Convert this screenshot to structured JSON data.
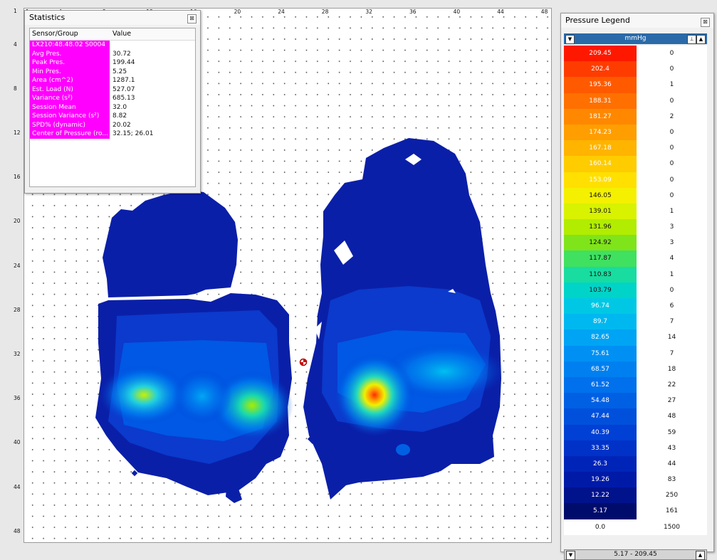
{
  "plot": {
    "x_ticks": [
      "1",
      "4",
      "8",
      "12",
      "16",
      "20",
      "24",
      "28",
      "32",
      "36",
      "40",
      "44",
      "48"
    ],
    "y_ticks": [
      "1",
      "4",
      "8",
      "12",
      "16",
      "20",
      "24",
      "28",
      "32",
      "36",
      "40",
      "44",
      "48"
    ]
  },
  "stats": {
    "title": "Statistics",
    "close_label": "⊠",
    "header_sensor": "Sensor/Group",
    "header_value": "Value",
    "rows": [
      {
        "label": "LX210:48.48.02 S0004",
        "value": ""
      },
      {
        "label": "Avg Pres.",
        "value": "30.72"
      },
      {
        "label": "Peak Pres.",
        "value": "199.44"
      },
      {
        "label": "Min Pres.",
        "value": "5.25"
      },
      {
        "label": "Area (cm^2)",
        "value": "1287.1"
      },
      {
        "label": "Est. Load (N)",
        "value": "527.07"
      },
      {
        "label": "Variance (s²)",
        "value": "685.13"
      },
      {
        "label": "Session Mean",
        "value": "32.0"
      },
      {
        "label": "Session Variance (s²)",
        "value": "8.82"
      },
      {
        "label": "SPD% (dynamic)",
        "value": "20.02"
      },
      {
        "label": "Center of Pressure (ro...",
        "value": "32.15; 26.01"
      }
    ]
  },
  "legend": {
    "title": "Pressure Legend",
    "close_label": "⊠",
    "unit": "mmHg",
    "range_label": "5.17 - 209.45",
    "rows": [
      {
        "value": "209.45",
        "count": "0",
        "color": "#ff1800"
      },
      {
        "value": "202.4",
        "count": "0",
        "color": "#ff3c00"
      },
      {
        "value": "195.36",
        "count": "1",
        "color": "#ff5a00"
      },
      {
        "value": "188.31",
        "count": "0",
        "color": "#ff7000"
      },
      {
        "value": "181.27",
        "count": "2",
        "color": "#ff8800"
      },
      {
        "value": "174.23",
        "count": "0",
        "color": "#ff9e00"
      },
      {
        "value": "167.18",
        "count": "0",
        "color": "#ffb400"
      },
      {
        "value": "160.14",
        "count": "0",
        "color": "#ffcc00"
      },
      {
        "value": "153.09",
        "count": "0",
        "color": "#ffe000"
      },
      {
        "value": "146.05",
        "count": "0",
        "color": "#f4f000"
      },
      {
        "value": "139.01",
        "count": "1",
        "color": "#d8f200"
      },
      {
        "value": "131.96",
        "count": "3",
        "color": "#b2ec00"
      },
      {
        "value": "124.92",
        "count": "3",
        "color": "#80e41a"
      },
      {
        "value": "117.87",
        "count": "4",
        "color": "#40e060"
      },
      {
        "value": "110.83",
        "count": "1",
        "color": "#18dca0"
      },
      {
        "value": "103.79",
        "count": "0",
        "color": "#00d4c8"
      },
      {
        "value": "96.74",
        "count": "6",
        "color": "#00c8e4"
      },
      {
        "value": "89.7",
        "count": "7",
        "color": "#00b8f0"
      },
      {
        "value": "82.65",
        "count": "14",
        "color": "#00a4f4"
      },
      {
        "value": "75.61",
        "count": "7",
        "color": "#0090f4"
      },
      {
        "value": "68.57",
        "count": "18",
        "color": "#0080f0"
      },
      {
        "value": "61.52",
        "count": "22",
        "color": "#0070ec"
      },
      {
        "value": "54.48",
        "count": "27",
        "color": "#0060e4"
      },
      {
        "value": "47.44",
        "count": "48",
        "color": "#0050dc"
      },
      {
        "value": "40.39",
        "count": "59",
        "color": "#0040d4"
      },
      {
        "value": "33.35",
        "count": "43",
        "color": "#0032c8"
      },
      {
        "value": "26.3",
        "count": "44",
        "color": "#0024b8"
      },
      {
        "value": "19.26",
        "count": "83",
        "color": "#001aa8"
      },
      {
        "value": "12.22",
        "count": "250",
        "color": "#00128c"
      },
      {
        "value": "5.17",
        "count": "161",
        "color": "#000c6c"
      },
      {
        "value": "0.0",
        "count": "1500",
        "color": "#ffffff"
      }
    ]
  }
}
